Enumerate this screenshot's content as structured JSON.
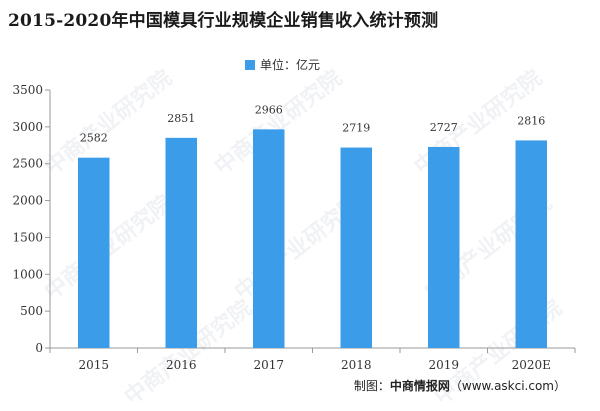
{
  "title": "2015-2020年中国模具行业规模企业销售收入统计预测",
  "source_prefix": "制图：",
  "source_name": "中商情报网",
  "source_url": "（www.askci.com）",
  "watermark_text": "中商产业研究院",
  "chart_data": {
    "type": "bar",
    "categories": [
      "2015",
      "2016",
      "2017",
      "2018",
      "2019",
      "2020E"
    ],
    "series": [
      {
        "name": "单位：亿元",
        "values": [
          2582,
          2851,
          2966,
          2719,
          2727,
          2816
        ]
      }
    ],
    "data_labels": [
      "2582",
      "2851",
      "2966",
      "2719",
      "2727",
      "2816"
    ],
    "ylim": [
      0,
      3500
    ],
    "yticks": [
      0,
      500,
      1000,
      1500,
      2000,
      2500,
      3000,
      3500
    ],
    "grid": false,
    "legend_position": "top-center",
    "bar_color": "#3b9ce9",
    "axis_color": "#999999"
  }
}
